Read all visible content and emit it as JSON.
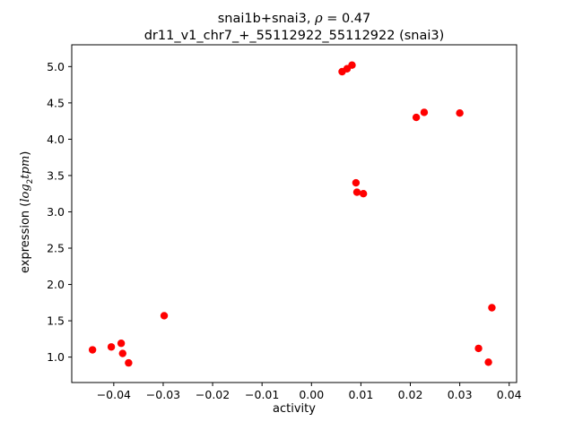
{
  "header": {
    "title_prefix": "snai1b+snai3, ",
    "rho_symbol": "ρ",
    "rho_rest": " = 0.47",
    "subtitle": "dr11_v1_chr7_+_55112922_55112922 (snai3)"
  },
  "axes_labels": {
    "xlabel": "activity",
    "ylabel_prefix": "expression (",
    "ylabel_log": "log",
    "ylabel_sub": "2",
    "ylabel_tpm": "tpm",
    "ylabel_suffix": ")"
  },
  "chart_data": {
    "type": "scatter",
    "title": "snai1b+snai3, ρ = 0.47",
    "subtitle": "dr11_v1_chr7_+_55112922_55112922 (snai3)",
    "xlabel": "activity",
    "ylabel": "expression (log2tpm)",
    "marker_color": "#ff0000",
    "grid": false,
    "legend": null,
    "xlim": [
      -0.0485,
      0.0415
    ],
    "ylim": [
      0.65,
      5.3
    ],
    "xticks": [
      -0.04,
      -0.03,
      -0.02,
      -0.01,
      0.0,
      0.01,
      0.02,
      0.03,
      0.04
    ],
    "xtick_labels": [
      "−0.04",
      "−0.03",
      "−0.02",
      "−0.01",
      "0.00",
      "0.01",
      "0.02",
      "0.03",
      "0.04"
    ],
    "yticks": [
      1.0,
      1.5,
      2.0,
      2.5,
      3.0,
      3.5,
      4.0,
      4.5,
      5.0
    ],
    "ytick_labels": [
      "1.0",
      "1.5",
      "2.0",
      "2.5",
      "3.0",
      "3.5",
      "4.0",
      "4.5",
      "5.0"
    ],
    "points": [
      {
        "x": -0.0443,
        "y": 1.1
      },
      {
        "x": -0.0405,
        "y": 1.14
      },
      {
        "x": -0.0385,
        "y": 1.19
      },
      {
        "x": -0.0382,
        "y": 1.05
      },
      {
        "x": -0.037,
        "y": 0.92
      },
      {
        "x": -0.0298,
        "y": 1.57
      },
      {
        "x": 0.0062,
        "y": 4.93
      },
      {
        "x": 0.0072,
        "y": 4.97
      },
      {
        "x": 0.0082,
        "y": 5.02
      },
      {
        "x": 0.009,
        "y": 3.4
      },
      {
        "x": 0.0092,
        "y": 3.27
      },
      {
        "x": 0.0105,
        "y": 3.25
      },
      {
        "x": 0.0212,
        "y": 4.3
      },
      {
        "x": 0.0228,
        "y": 4.37
      },
      {
        "x": 0.03,
        "y": 4.36
      },
      {
        "x": 0.0338,
        "y": 1.12
      },
      {
        "x": 0.0358,
        "y": 0.93
      },
      {
        "x": 0.0365,
        "y": 1.68
      }
    ]
  }
}
